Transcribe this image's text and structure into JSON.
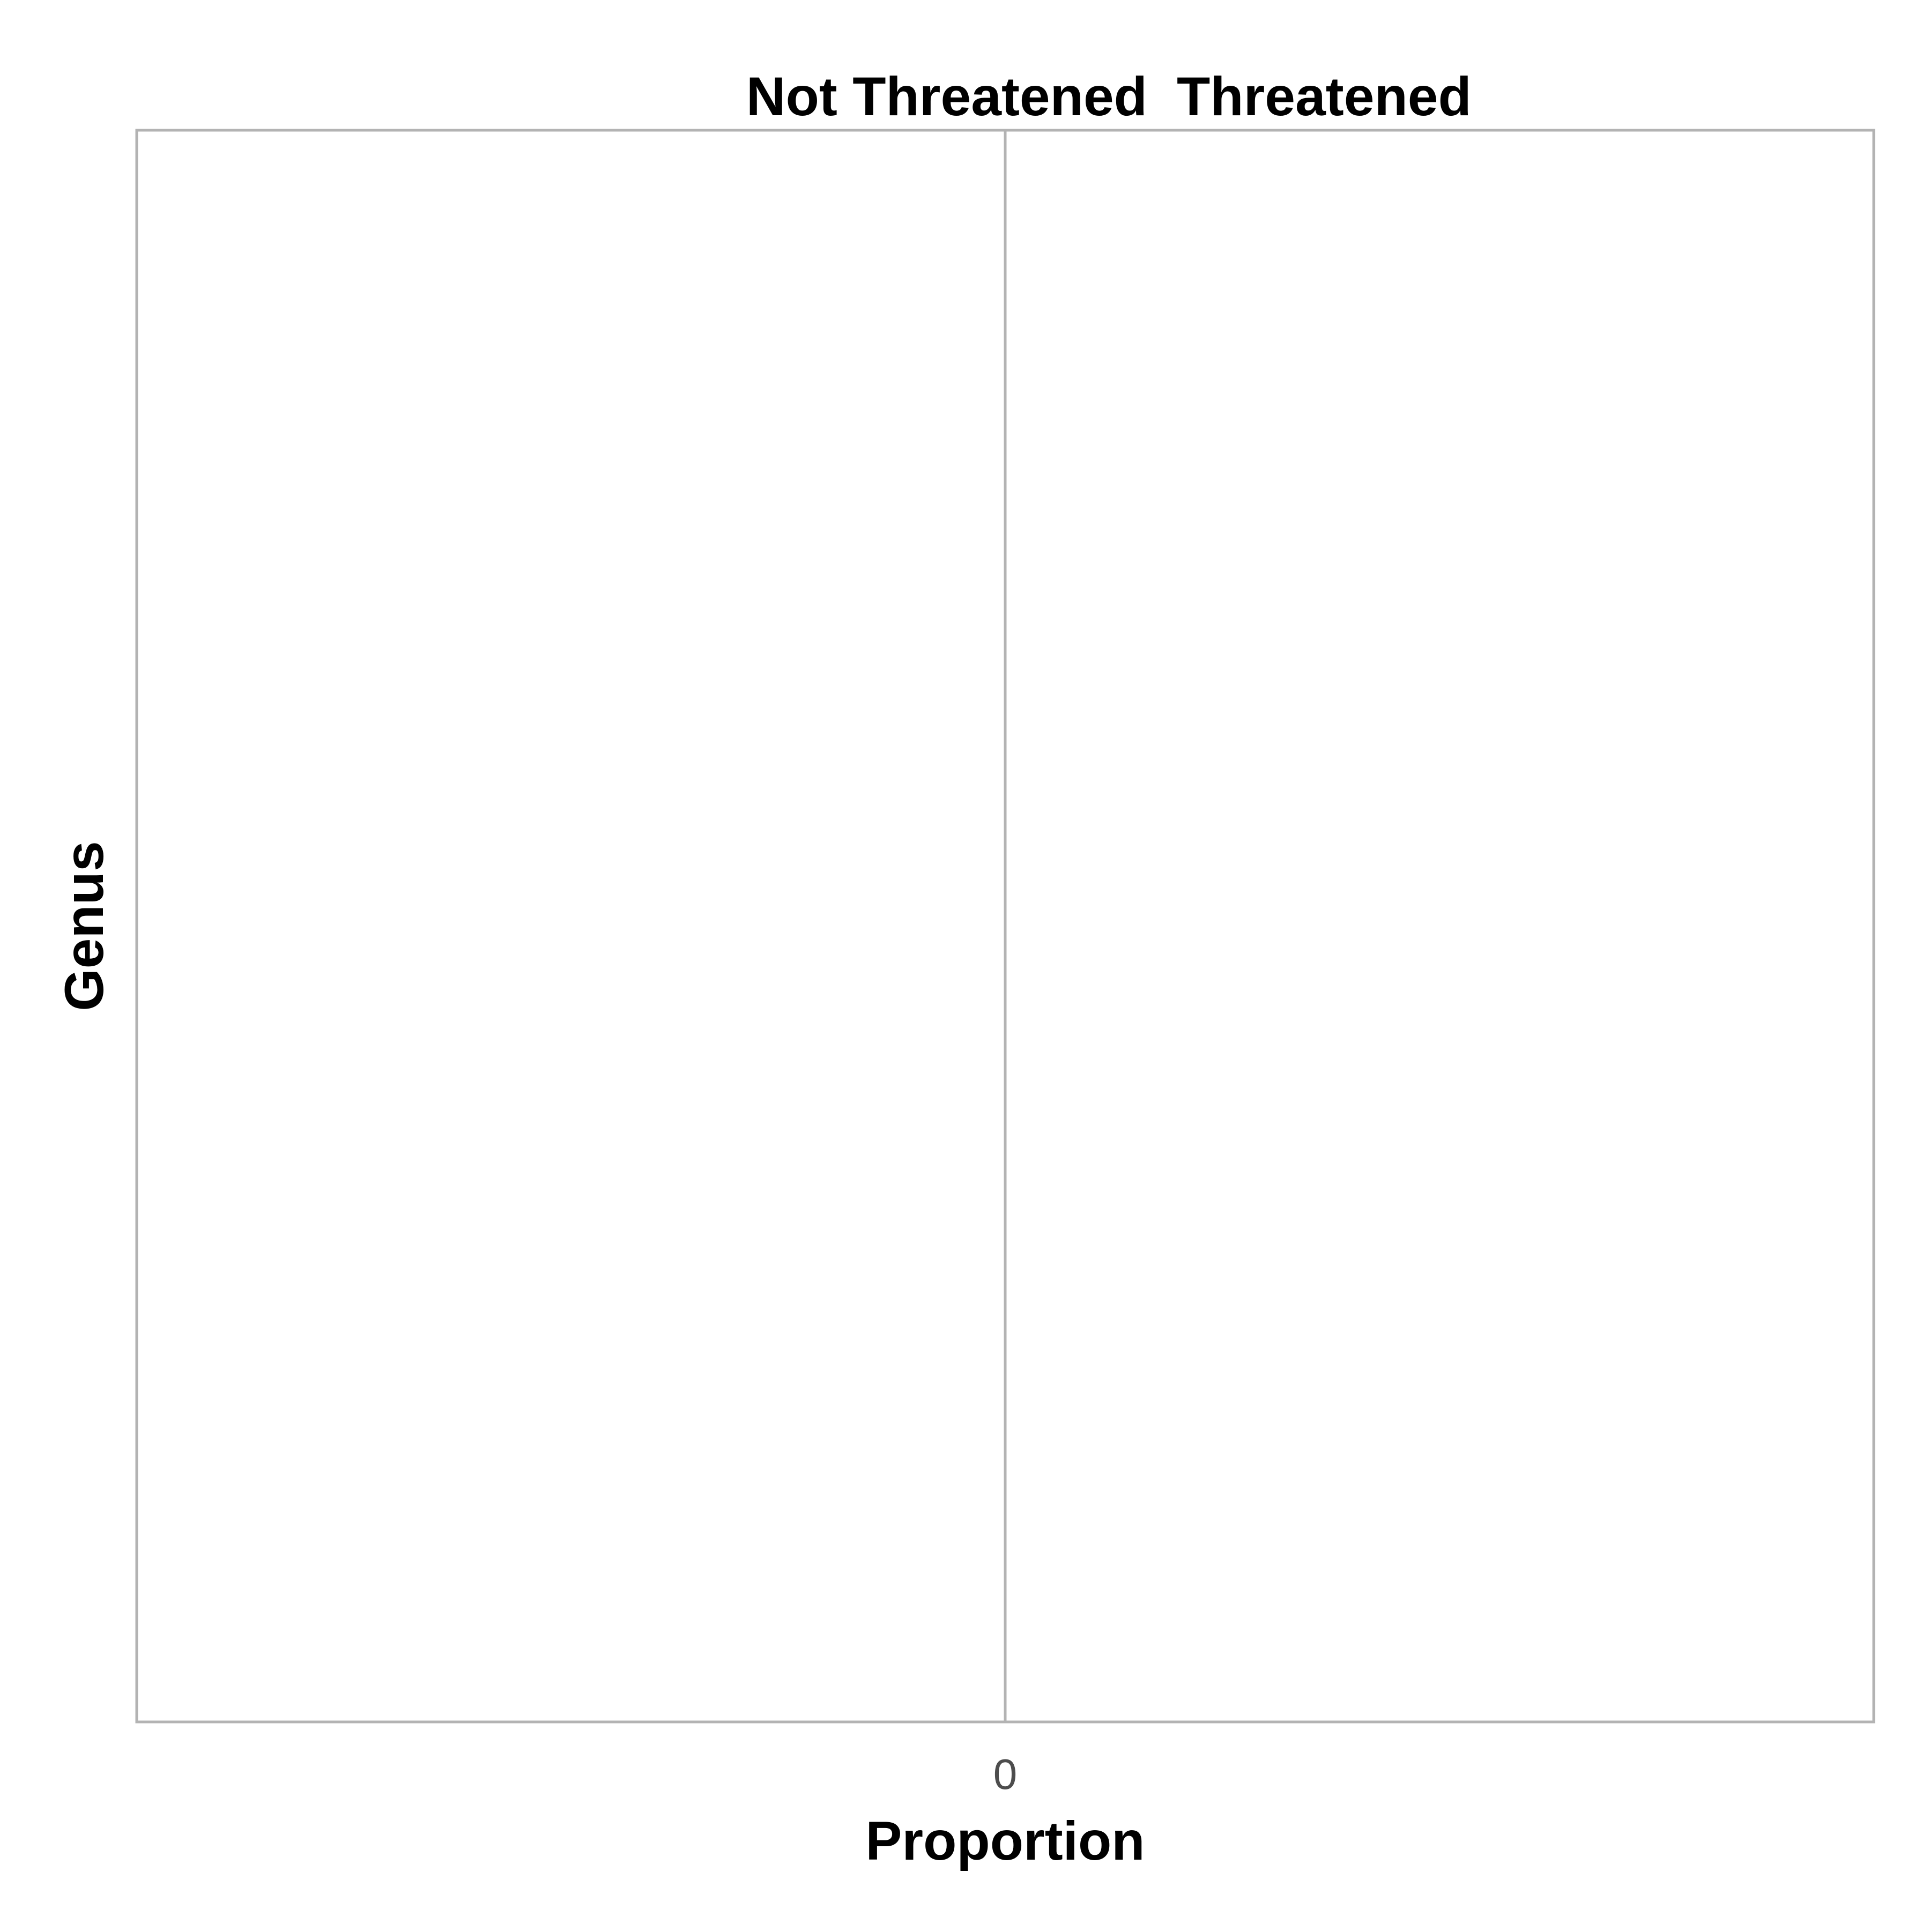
{
  "chart_data": {
    "type": "bar",
    "orientation": "horizontal",
    "subtitle_left": "Not Threatened",
    "subtitle_right": "Threatened",
    "xlabel": "Proportion",
    "ylabel": "Genus",
    "x_ticks": [
      0
    ],
    "x_tick_labels": [
      "0"
    ],
    "categories": [],
    "series": [],
    "grid": false,
    "legend": "none",
    "colors": {
      "frame": "#b3b3b3",
      "zero_line": "#b3b3b3",
      "tick_text": "#4d4d4d",
      "title_text": "#000000"
    }
  }
}
